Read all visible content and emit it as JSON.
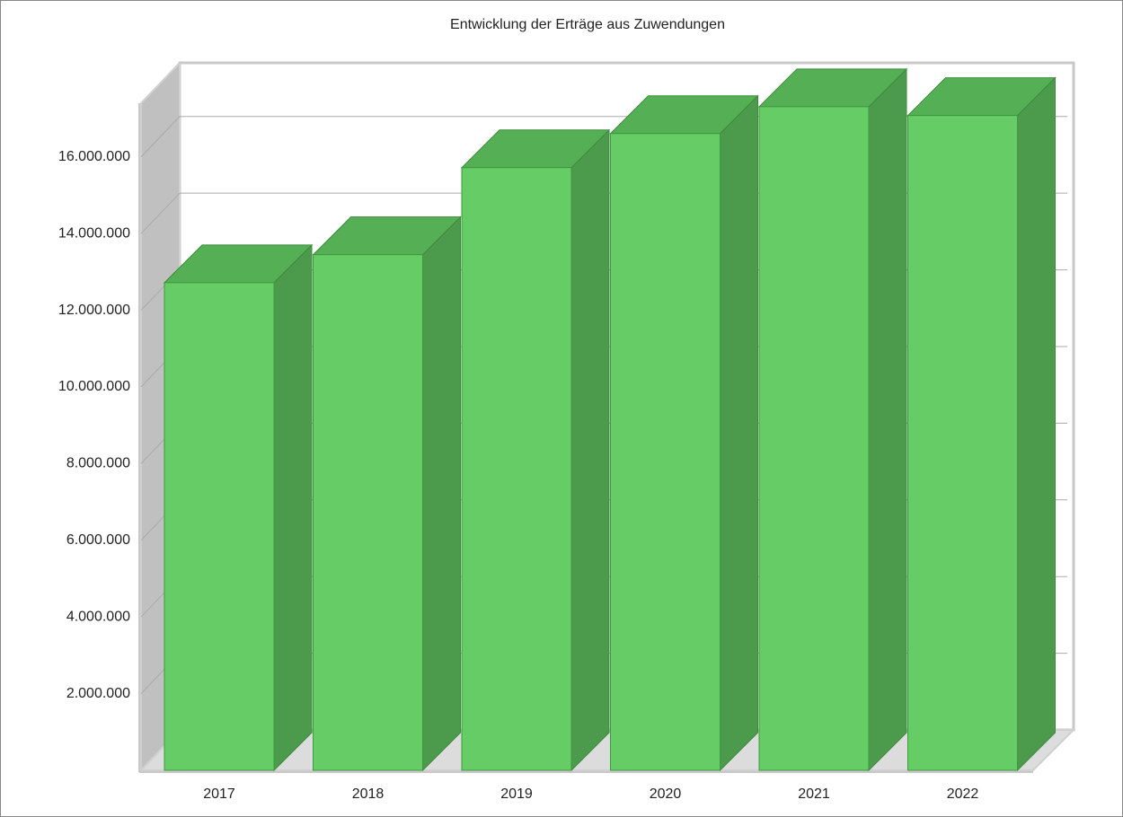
{
  "chart_data": {
    "type": "bar3d",
    "title": "Entwicklung der Erträge aus Zuwendungen",
    "categories": [
      "2017",
      "2018",
      "2019",
      "2020",
      "2021",
      "2022"
    ],
    "values": [
      12720000,
      13450000,
      15720000,
      16610000,
      17310000,
      17080000
    ],
    "color": "#66cc66",
    "ylim": [
      0,
      17400000
    ],
    "yticks": [
      {
        "value": 2000000,
        "label": "2.000.000"
      },
      {
        "value": 4000000,
        "label": "4.000.000"
      },
      {
        "value": 6000000,
        "label": "6.000.000"
      },
      {
        "value": 8000000,
        "label": "8.000.000"
      },
      {
        "value": 10000000,
        "label": "10.000.000"
      },
      {
        "value": 12000000,
        "label": "12.000.000"
      },
      {
        "value": 14000000,
        "label": "14.000.000"
      },
      {
        "value": 16000000,
        "label": "16.000.000"
      }
    ],
    "grid": true
  }
}
